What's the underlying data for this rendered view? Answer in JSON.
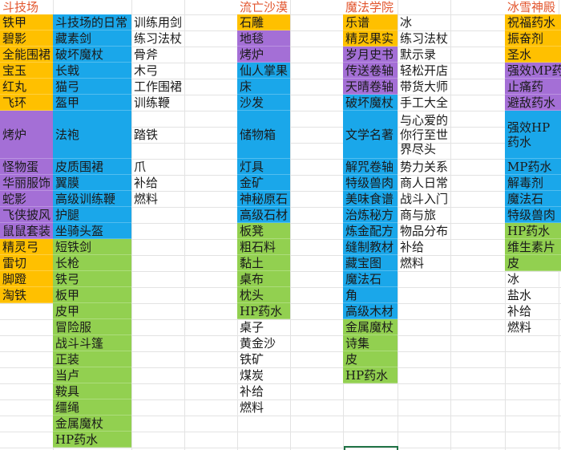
{
  "columns": [
    {
      "header": "斗技场",
      "groups": [
        {
          "fill": "#ffc000",
          "items": [
            "铁甲",
            "碧影",
            "全能围裙",
            "宝玉",
            "红丸",
            "飞环"
          ]
        },
        {
          "fill": "#a46fd6",
          "items": [
            "烤炉",
            "怪物蛋",
            "华丽服饰",
            "蛇影",
            "飞侠披风",
            "鼠鼠套装"
          ]
        },
        {
          "fill": "#ffc000",
          "items": [
            "精灵弓",
            "雷切",
            "脚蹬",
            "淘铁"
          ]
        }
      ]
    },
    {
      "groups": [
        {
          "fill": "#1aa7ea",
          "items": [
            "斗技场的日常",
            "藏素剑",
            "破坏魔杖",
            "长戟",
            "猫弓",
            "盔甲",
            "法袍",
            "皮质围裙",
            "翼膜",
            "高级训练鞭",
            "护腿",
            "坐骑头盔"
          ]
        },
        {
          "fill": "#92d050",
          "items": [
            "短铁剑",
            "长枪",
            "铁弓",
            "板甲",
            "皮甲",
            "冒险服",
            "战斗斗篷",
            "正装",
            "当卢",
            "鞍具",
            "缰绳",
            "金属魔杖",
            "HP药水"
          ]
        }
      ]
    },
    {
      "groups": [
        {
          "fill": null,
          "items": [
            "训练用剑",
            "练习法杖",
            "骨斧",
            "木弓",
            "工作围裙",
            "训练鞭",
            "踏铁",
            "爪",
            "补给",
            "燃料"
          ]
        }
      ]
    },
    {
      "header": "流亡沙漠",
      "groups": [
        {
          "fill": "#ffc000",
          "items": [
            "石雕"
          ]
        },
        {
          "fill": "#a46fd6",
          "items": [
            "地毯",
            "烤炉"
          ]
        },
        {
          "fill": "#1aa7ea",
          "items": [
            "仙人掌果",
            "床",
            "沙发",
            "储物箱",
            "灯具",
            "金矿",
            "神秘原石",
            "高级石材"
          ]
        },
        {
          "fill": "#92d050",
          "items": [
            "板凳",
            "粗石料",
            "黏土",
            "桌布",
            "枕头",
            "HP药水"
          ]
        },
        {
          "fill": null,
          "items": [
            "桌子",
            "黄金沙",
            "铁矿",
            "煤炭",
            "补给",
            "燃料"
          ]
        }
      ]
    },
    {
      "header": "魔法学院",
      "groups": [
        {
          "fill": "#ffc000",
          "items": [
            "乐谱",
            "精灵果实"
          ]
        },
        {
          "fill": "#a46fd6",
          "items": [
            "岁月史书",
            "传送卷轴",
            "天晴卷轴"
          ]
        },
        {
          "fill": "#1aa7ea",
          "items": [
            "破坏魔杖",
            "文学名著",
            "解咒卷轴",
            "特级兽肉",
            "美味食谱",
            "治炼秘方",
            "炼金配方",
            "缝制教材",
            "藏宝图",
            "魔法石",
            "角",
            "高级木材"
          ]
        },
        {
          "fill": "#92d050",
          "items": [
            "金属魔杖",
            "诗集",
            "皮",
            "HP药水"
          ]
        }
      ]
    },
    {
      "groups": [
        {
          "fill": null,
          "items": [
            "冰",
            "练习法杖",
            "默示录",
            "轻松开店",
            "带货大师",
            "手工大全",
            "与心爱的你行至世界尽头",
            "势力关系",
            "商人日常",
            "战斗入门",
            "商与旅",
            "物品分布",
            "补给",
            "燃料"
          ]
        }
      ]
    },
    {
      "header": "冰雪神殿",
      "groups": [
        {
          "fill": "#ffc000",
          "items": [
            "祝福药水",
            "振奋剂",
            "圣水"
          ]
        },
        {
          "fill": "#a46fd6",
          "items": [
            "强效MP药水",
            "止痛药",
            "避敌药水"
          ]
        },
        {
          "fill": "#1aa7ea",
          "items": [
            "强效HP药水",
            "MP药水",
            "解毒剂",
            "魔法石",
            "特级兽肉"
          ]
        },
        {
          "fill": "#92d050",
          "items": [
            "HP药水",
            "维生素片",
            "皮"
          ]
        },
        {
          "fill": null,
          "items": [
            "冰",
            "盐水",
            "补给",
            "燃料"
          ]
        }
      ]
    }
  ]
}
